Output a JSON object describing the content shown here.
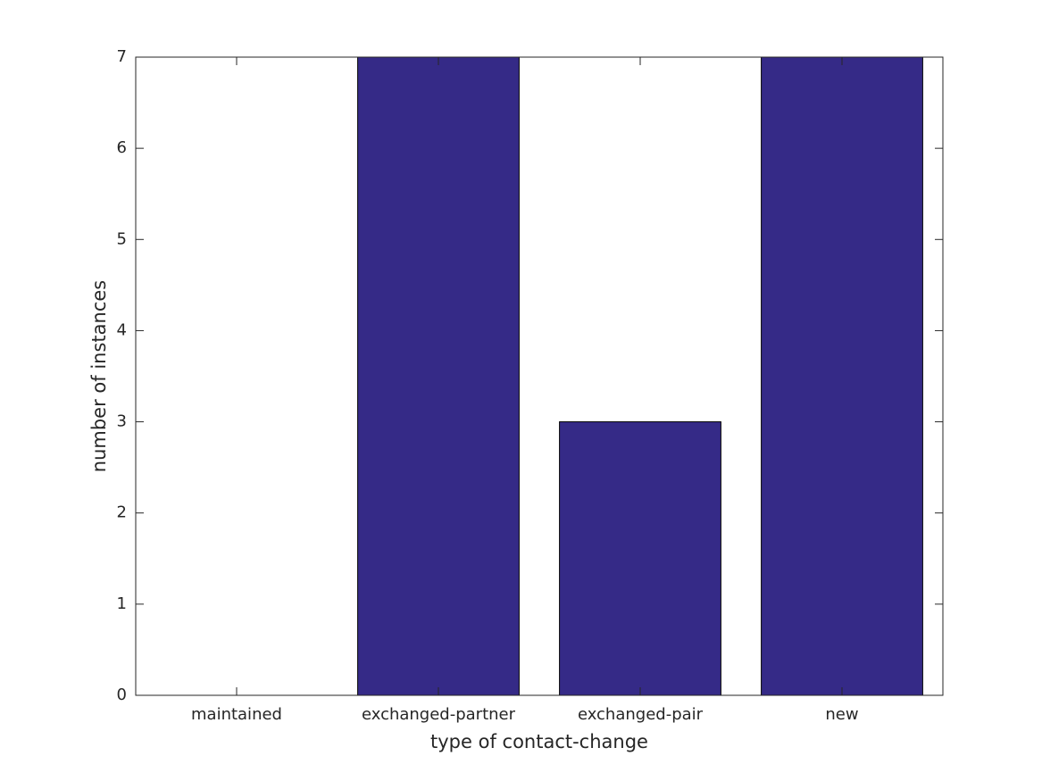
{
  "chart_data": {
    "type": "bar",
    "x_label": "type of contact-change",
    "y_label": "number of instances",
    "categories": [
      "maintained",
      "exchanged-partner",
      "exchanged-pair",
      "new"
    ],
    "values": [
      0,
      7,
      3,
      7
    ],
    "color": "#352a87",
    "ylim": [
      0,
      7
    ],
    "yticks": [
      0,
      1,
      2,
      3,
      4,
      5,
      6,
      7
    ],
    "grid": false
  }
}
